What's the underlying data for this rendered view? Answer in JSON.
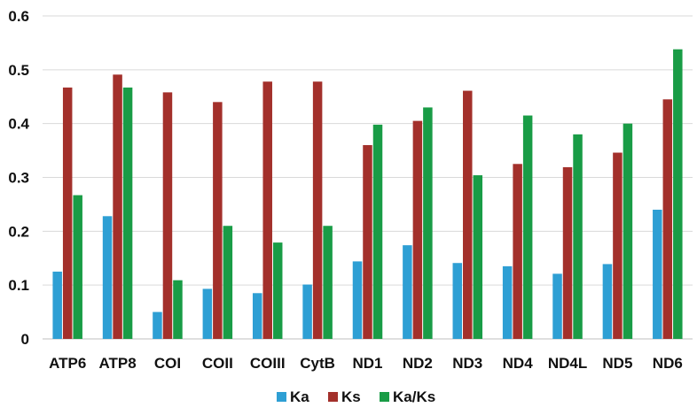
{
  "chart_data": {
    "type": "bar",
    "categories": [
      "ATP6",
      "ATP8",
      "COI",
      "COII",
      "COIII",
      "CytB",
      "ND1",
      "ND2",
      "ND3",
      "ND4",
      "ND4L",
      "ND5",
      "ND6"
    ],
    "series": [
      {
        "name": "Ka",
        "color": "#2e9fd4",
        "values": [
          0.125,
          0.228,
          0.05,
          0.093,
          0.085,
          0.101,
          0.144,
          0.174,
          0.141,
          0.135,
          0.121,
          0.139,
          0.24
        ]
      },
      {
        "name": "Ks",
        "color": "#a3302b",
        "values": [
          0.467,
          0.491,
          0.458,
          0.44,
          0.478,
          0.478,
          0.36,
          0.405,
          0.461,
          0.325,
          0.319,
          0.346,
          0.445
        ]
      },
      {
        "name": "Ka/Ks",
        "color": "#199c46",
        "values": [
          0.267,
          0.467,
          0.109,
          0.21,
          0.179,
          0.21,
          0.398,
          0.43,
          0.304,
          0.415,
          0.38,
          0.4,
          0.538
        ]
      }
    ],
    "y_ticks": [
      "0",
      "0.1",
      "0.2",
      "0.3",
      "0.4",
      "0.5",
      "0.6"
    ],
    "ylim": [
      0,
      0.6
    ],
    "title": "",
    "xlabel": "",
    "ylabel": "",
    "grid": "horizontal",
    "legend_position": "bottom"
  }
}
